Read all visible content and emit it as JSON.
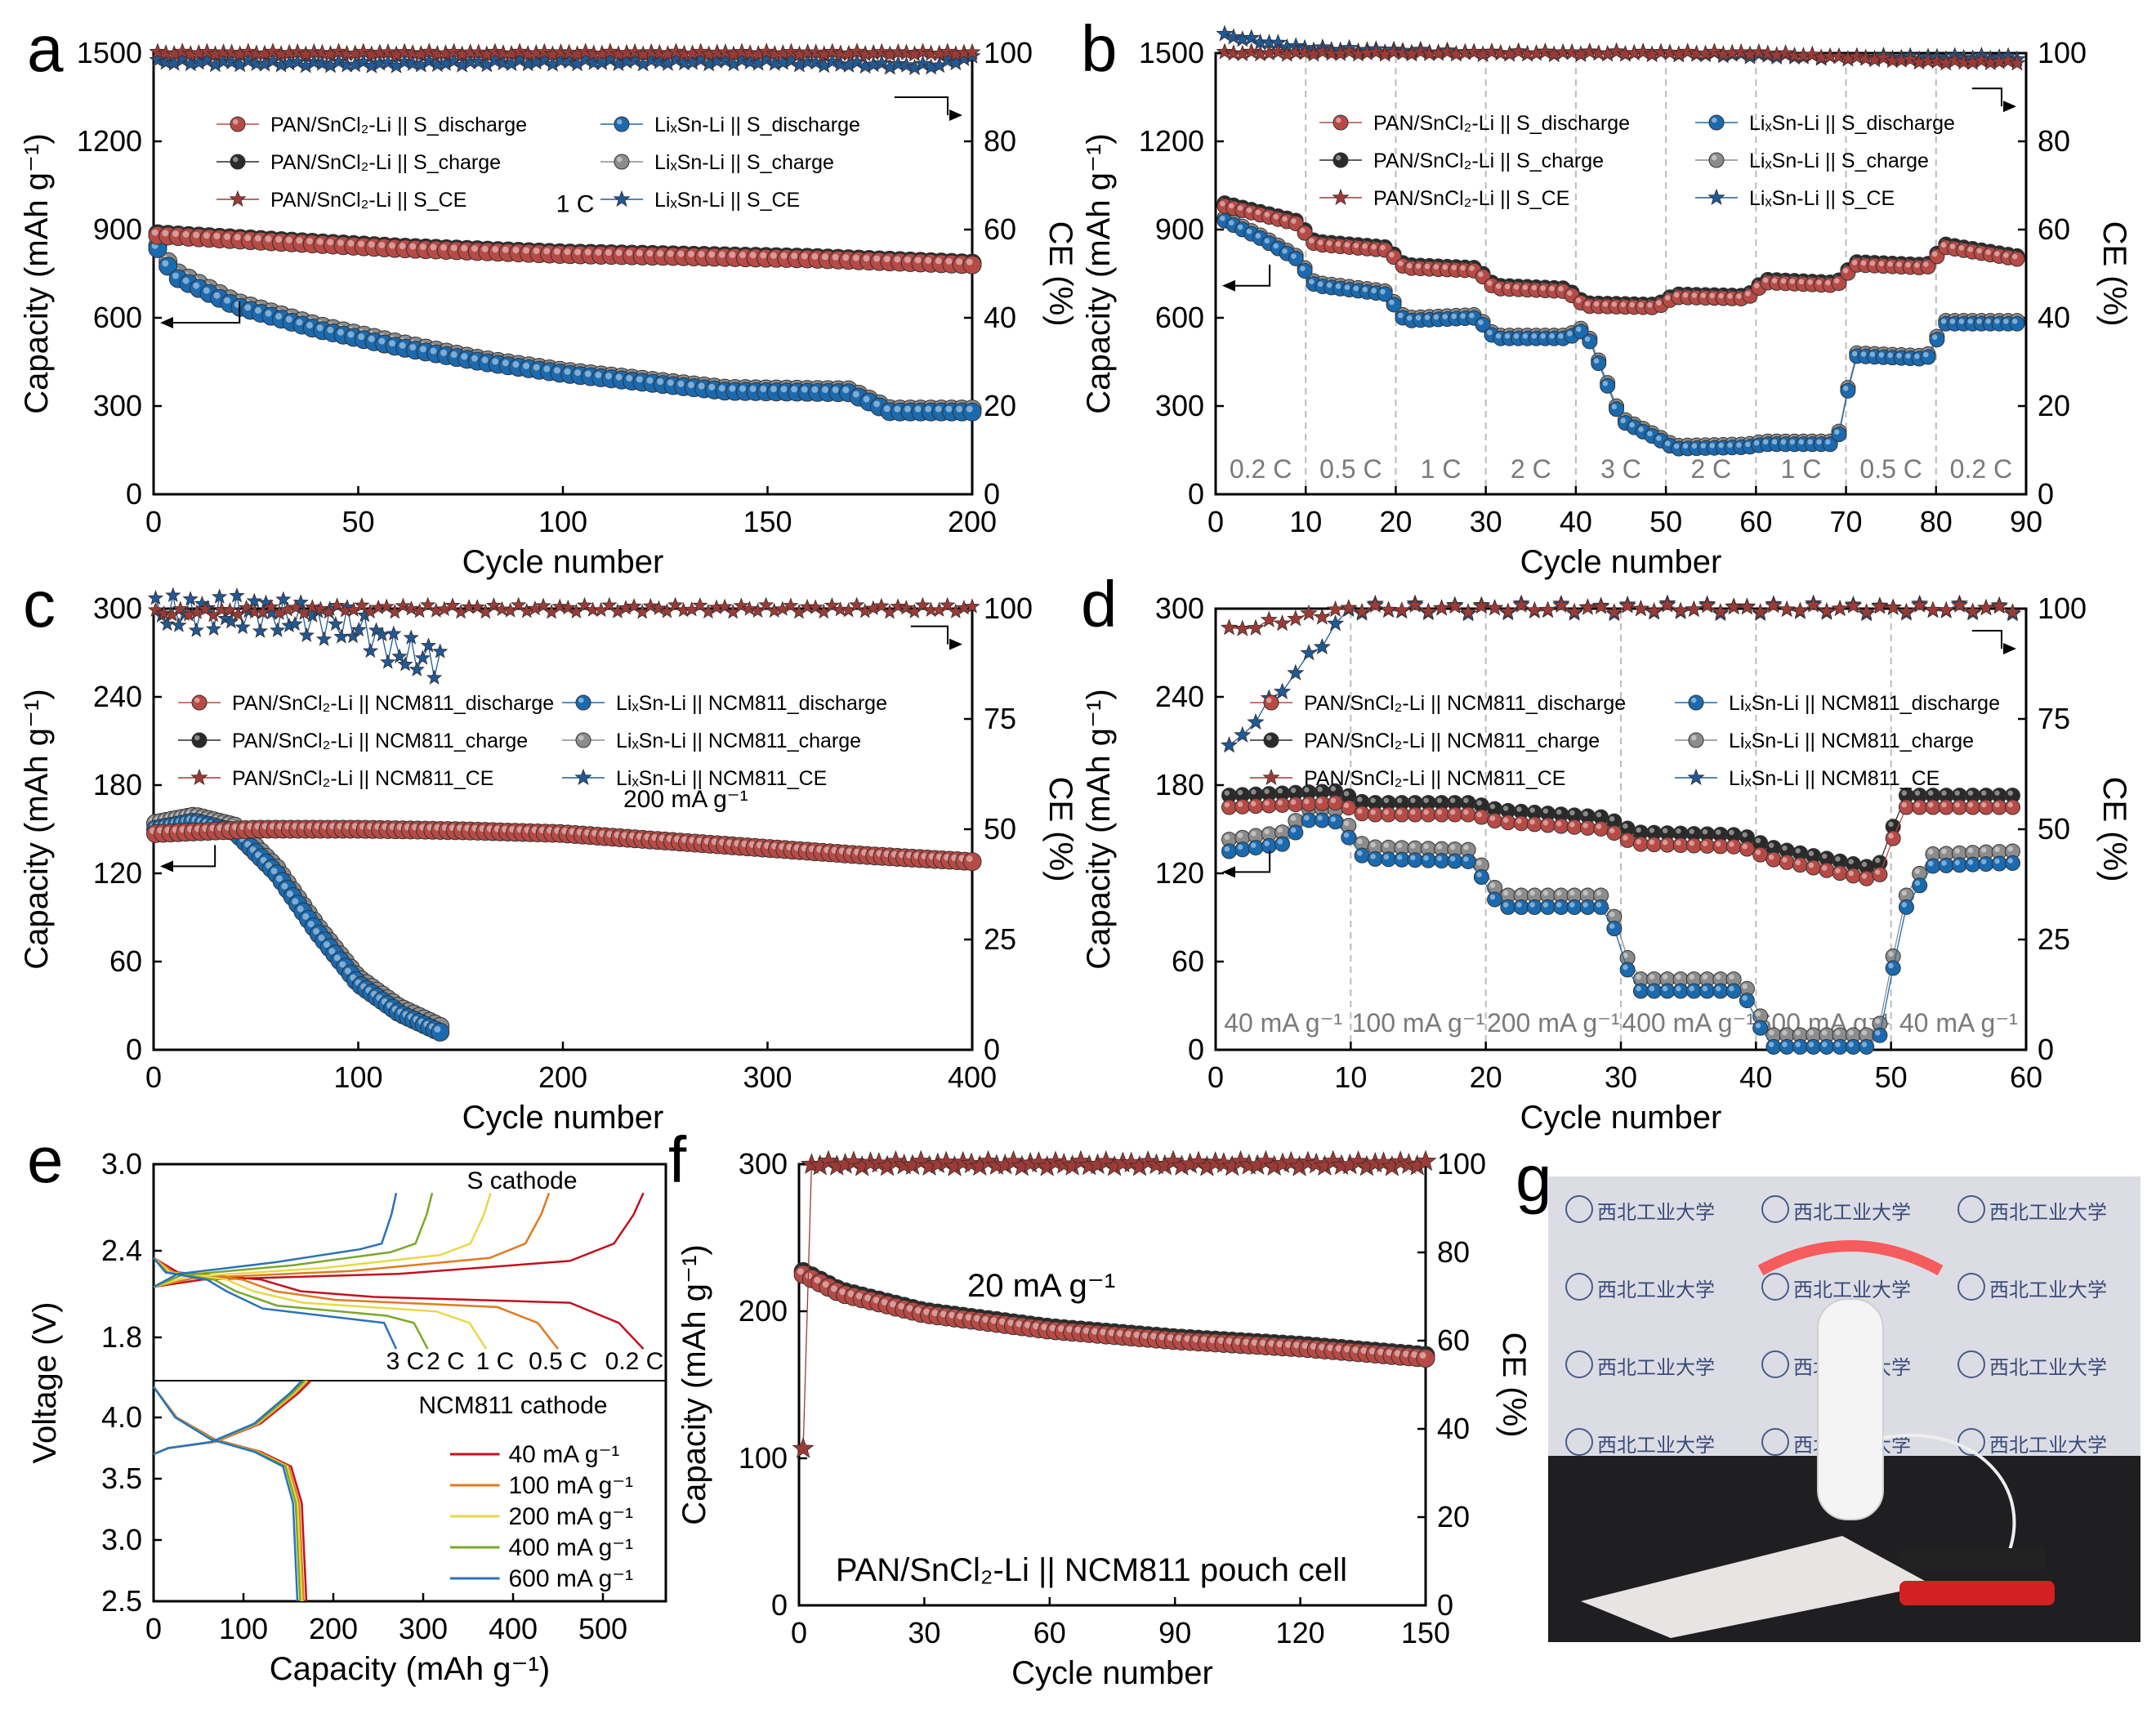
{
  "colors": {
    "red": "#b84a45",
    "red_light": "#e99a93",
    "black": "#2a2a2a",
    "blue": "#1a6ab0",
    "blue_light": "#5fa8e0",
    "gray": "#8c8c8c",
    "star_red": "#9c3b36",
    "star_blue": "#1e5a96",
    "e_02": "#c1121f",
    "e_05": "#e07a1f",
    "e_1": "#e8d84a",
    "e_2": "#7aa82a",
    "e_3": "#2a72b8"
  },
  "panels": {
    "a": {
      "label": "a",
      "xlabel": "Cycle number",
      "ylabel": "Capacity (mAh g⁻¹)",
      "y2label": "CE (%)",
      "xticks": [
        "0",
        "50",
        "100",
        "150",
        "200"
      ],
      "yticks": [
        "0",
        "300",
        "600",
        "900",
        "1200",
        "1500"
      ],
      "y2ticks": [
        "0",
        "20",
        "40",
        "60",
        "80",
        "100"
      ],
      "annotation": "1 C",
      "legend": [
        "PAN/SnCl₂-Li || S_discharge",
        "PAN/SnCl₂-Li || S_charge",
        "PAN/SnCl₂-Li || S_CE",
        "LiₓSn-Li || S_discharge",
        "LiₓSn-Li || S_charge",
        "LiₓSn-Li || S_CE"
      ]
    },
    "b": {
      "label": "b",
      "xlabel": "Cycle number",
      "ylabel": "Capacity (mAh g⁻¹)",
      "y2label": "CE (%)",
      "xticks": [
        "0",
        "10",
        "20",
        "30",
        "40",
        "50",
        "60",
        "70",
        "80",
        "90"
      ],
      "yticks": [
        "0",
        "300",
        "600",
        "900",
        "1200",
        "1500"
      ],
      "y2ticks": [
        "0",
        "20",
        "40",
        "60",
        "80",
        "100"
      ],
      "rates": [
        "0.2 C",
        "0.5 C",
        "1 C",
        "2 C",
        "3 C",
        "2 C",
        "1 C",
        "0.5 C",
        "0.2 C"
      ],
      "legend": [
        "PAN/SnCl₂-Li || S_discharge",
        "PAN/SnCl₂-Li || S_charge",
        "PAN/SnCl₂-Li || S_CE",
        "LiₓSn-Li || S_discharge",
        "LiₓSn-Li || S_charge",
        "LiₓSn-Li || S_CE"
      ]
    },
    "c": {
      "label": "c",
      "xlabel": "Cycle number",
      "ylabel": "Capacity (mAh g⁻¹)",
      "y2label": "CE (%)",
      "xticks": [
        "0",
        "100",
        "200",
        "300",
        "400"
      ],
      "yticks": [
        "0",
        "60",
        "120",
        "180",
        "240",
        "300"
      ],
      "y2ticks": [
        "0",
        "25",
        "50",
        "75",
        "100"
      ],
      "annotation": "200 mA g⁻¹",
      "legend": [
        "PAN/SnCl₂-Li || NCM811_discharge",
        "PAN/SnCl₂-Li || NCM811_charge",
        "PAN/SnCl₂-Li || NCM811_CE",
        "LiₓSn-Li || NCM811_discharge",
        "LiₓSn-Li || NCM811_charge",
        "LiₓSn-Li || NCM811_CE"
      ]
    },
    "d": {
      "label": "d",
      "xlabel": "Cycle number",
      "ylabel": "Capacity (mAh g⁻¹)",
      "y2label": "CE (%)",
      "xticks": [
        "0",
        "10",
        "20",
        "30",
        "40",
        "50",
        "60"
      ],
      "yticks": [
        "0",
        "60",
        "120",
        "180",
        "240",
        "300"
      ],
      "y2ticks": [
        "0",
        "25",
        "50",
        "75",
        "100"
      ],
      "rates": [
        "40 mA g⁻¹",
        "100 mA g⁻¹",
        "200 mA g⁻¹",
        "400 mA g⁻¹",
        "600 mA g⁻¹",
        "40 mA g⁻¹"
      ],
      "legend": [
        "PAN/SnCl₂-Li || NCM811_discharge",
        "PAN/SnCl₂-Li || NCM811_charge",
        "PAN/SnCl₂-Li || NCM811_CE",
        "LiₓSn-Li || NCM811_discharge",
        "LiₓSn-Li || NCM811_charge",
        "LiₓSn-Li || NCM811_CE"
      ]
    },
    "e": {
      "label": "e",
      "xlabel": "Capacity (mAh g⁻¹)",
      "ylabel": "Voltage (V)",
      "xticks": [
        "0",
        "100",
        "200",
        "300",
        "400",
        "500"
      ],
      "yticks_top": [
        "1.8",
        "2.4",
        "3.0"
      ],
      "yticks_bot": [
        "2.5",
        "3.0",
        "3.5",
        "4.0"
      ],
      "top_title": "S cathode",
      "bot_title": "NCM811 cathode",
      "top_rates": [
        "3 C",
        "2 C",
        "1 C",
        "0.5 C",
        "0.2 C"
      ],
      "bot_legend": [
        "40 mA g⁻¹",
        "100 mA g⁻¹",
        "200 mA g⁻¹",
        "400 mA g⁻¹",
        "600 mA g⁻¹"
      ]
    },
    "f": {
      "label": "f",
      "xlabel": "Cycle number",
      "ylabel": "Capacity (mAh g⁻¹)",
      "y2label": "CE (%)",
      "xticks": [
        "0",
        "30",
        "60",
        "90",
        "120",
        "150"
      ],
      "yticks": [
        "0",
        "100",
        "200",
        "300"
      ],
      "y2ticks": [
        "0",
        "20",
        "40",
        "60",
        "80",
        "100"
      ],
      "annotation": "20 mA g⁻¹",
      "caption": "PAN/SnCl₂-Li || NCM811 pouch cell"
    },
    "g": {
      "label": "g",
      "sign_text": "西北工业大学"
    }
  },
  "chart_data": [
    {
      "panel": "a",
      "type": "scatter",
      "xlim": [
        0,
        200
      ],
      "ylim": [
        0,
        1500
      ],
      "y2lim": [
        0,
        100
      ],
      "series": [
        {
          "name": "PAN/SnCl₂-Li || S_discharge",
          "x": [
            1,
            20,
            40,
            60,
            80,
            100,
            120,
            140,
            160,
            180,
            200
          ],
          "y": [
            880,
            865,
            850,
            835,
            825,
            815,
            810,
            805,
            800,
            790,
            780
          ]
        },
        {
          "name": "LiₓSn-Li || S_discharge",
          "x": [
            1,
            5,
            20,
            40,
            60,
            80,
            100,
            120,
            140,
            170,
            180,
            200
          ],
          "y": [
            835,
            740,
            640,
            560,
            500,
            450,
            410,
            380,
            350,
            345,
            280,
            280
          ]
        },
        {
          "name": "PAN/SnCl₂-Li || S_CE",
          "x": [
            1,
            50,
            100,
            150,
            200
          ],
          "y": [
            100,
            100,
            100,
            100,
            100
          ]
        },
        {
          "name": "LiₓSn-Li || S_CE",
          "x": [
            1,
            50,
            100,
            150,
            190,
            200
          ],
          "y": [
            98,
            97.5,
            98,
            98,
            97,
            99
          ]
        }
      ]
    },
    {
      "panel": "b",
      "type": "scatter",
      "xlim": [
        0,
        90
      ],
      "ylim": [
        0,
        1500
      ],
      "y2lim": [
        0,
        100
      ],
      "series": [
        {
          "name": "PAN/SnCl₂-Li || S_discharge",
          "x": [
            1,
            5,
            9,
            11,
            19,
            21,
            29,
            31,
            39,
            41,
            49,
            51,
            59,
            61,
            69,
            71,
            79,
            81,
            89
          ],
          "y": [
            980,
            950,
            920,
            850,
            830,
            770,
            760,
            700,
            690,
            640,
            635,
            670,
            665,
            720,
            710,
            780,
            770,
            840,
            800
          ]
        },
        {
          "name": "LiₓSn-Li || S_discharge",
          "x": [
            1,
            5,
            9,
            11,
            19,
            21,
            29,
            31,
            39,
            41,
            43,
            45,
            49,
            51,
            59,
            61,
            69,
            71,
            79,
            81,
            89
          ],
          "y": [
            930,
            870,
            800,
            710,
            680,
            590,
            600,
            530,
            530,
            560,
            410,
            250,
            190,
            155,
            160,
            170,
            170,
            470,
            460,
            580,
            580
          ]
        },
        {
          "name": "PAN/SnCl₂-Li || S_CE",
          "x": [
            1,
            20,
            40,
            60,
            80,
            82,
            90
          ],
          "y": [
            100,
            100,
            100,
            100,
            98,
            98,
            98
          ]
        },
        {
          "name": "LiₓSn-Li || S_CE",
          "x": [
            1,
            10,
            30,
            50,
            70,
            90
          ],
          "y": [
            104,
            101,
            100,
            100,
            99,
            99
          ]
        }
      ]
    },
    {
      "panel": "c",
      "type": "scatter",
      "xlim": [
        0,
        400
      ],
      "ylim": [
        0,
        300
      ],
      "y2lim": [
        0,
        100
      ],
      "series": [
        {
          "name": "PAN/SnCl₂-Li || NCM811_discharge",
          "x": [
            1,
            50,
            100,
            150,
            200,
            250,
            300,
            350,
            400
          ],
          "y": [
            147,
            150,
            150,
            149,
            147,
            142,
            137,
            132,
            128
          ]
        },
        {
          "name": "LiₓSn-Li || NCM811_discharge",
          "x": [
            1,
            20,
            40,
            60,
            80,
            100,
            120,
            140
          ],
          "y": [
            150,
            155,
            148,
            120,
            80,
            45,
            25,
            12
          ]
        },
        {
          "name": "PAN/SnCl₂-Li || NCM811_CE",
          "x": [
            1,
            100,
            200,
            300,
            400
          ],
          "y": [
            99,
            100,
            100,
            100,
            100
          ]
        },
        {
          "name": "LiₓSn-Li || NCM811_CE",
          "x": [
            1,
            50,
            100,
            120,
            140
          ],
          "y": [
            99,
            99,
            96,
            90,
            88
          ]
        }
      ]
    },
    {
      "panel": "d",
      "type": "scatter",
      "xlim": [
        0,
        60
      ],
      "ylim": [
        0,
        300
      ],
      "y2lim": [
        0,
        100
      ],
      "series": [
        {
          "name": "PAN/SnCl₂-Li || NCM811_discharge",
          "x": [
            1,
            9,
            11,
            19,
            21,
            29,
            31,
            39,
            41,
            49,
            51,
            59
          ],
          "y": [
            165,
            168,
            160,
            160,
            155,
            150,
            140,
            138,
            130,
            115,
            165,
            165
          ]
        },
        {
          "name": "LiₓSn-Li || NCM811_discharge",
          "x": [
            1,
            5,
            7,
            9,
            11,
            19,
            21,
            29,
            31,
            39,
            41,
            49,
            51,
            53,
            59
          ],
          "y": [
            135,
            140,
            157,
            155,
            130,
            128,
            97,
            97,
            40,
            40,
            2,
            2,
            95,
            125,
            127
          ]
        },
        {
          "name": "PAN/SnCl₂-Li || NCM811_CE",
          "x": [
            1,
            10,
            30,
            50,
            60
          ],
          "y": [
            95,
            100,
            100,
            100,
            100
          ]
        },
        {
          "name": "LiₓSn-Li || NCM811_CE",
          "x": [
            1,
            10,
            30,
            50,
            60
          ],
          "y": [
            68,
            100,
            100,
            100,
            100
          ]
        }
      ]
    },
    {
      "panel": "e",
      "type": "line",
      "xlim": [
        0,
        570
      ],
      "ylim_top": [
        1.5,
        3.0
      ],
      "ylim_bot": [
        2.5,
        4.3
      ],
      "series": [
        {
          "name": "0.2 C",
          "charge_end": 545,
          "discharge_end": 545
        },
        {
          "name": "0.5 C",
          "charge_end": 440,
          "discharge_end": 450
        },
        {
          "name": "1 C",
          "charge_end": 375,
          "discharge_end": 370
        },
        {
          "name": "2 C",
          "charge_end": 310,
          "discharge_end": 305
        },
        {
          "name": "3 C",
          "charge_end": 270,
          "discharge_end": 270
        },
        {
          "name": "40 mA g⁻¹",
          "capacity_end": 170
        },
        {
          "name": "100 mA g⁻¹",
          "capacity_end": 167
        },
        {
          "name": "200 mA g⁻¹",
          "capacity_end": 165
        },
        {
          "name": "400 mA g⁻¹",
          "capacity_end": 163
        },
        {
          "name": "600 mA g⁻¹",
          "capacity_end": 160
        }
      ]
    },
    {
      "panel": "f",
      "type": "scatter",
      "xlim": [
        0,
        150
      ],
      "ylim": [
        0,
        300
      ],
      "y2lim": [
        0,
        100
      ],
      "series": [
        {
          "name": "discharge",
          "x": [
            1,
            10,
            30,
            60,
            90,
            120,
            150
          ],
          "y": [
            225,
            212,
            198,
            187,
            180,
            175,
            168
          ]
        },
        {
          "name": "CE",
          "x": [
            1,
            3,
            30,
            60,
            90,
            120,
            150
          ],
          "y": [
            35,
            100,
            100,
            100,
            100,
            100,
            100
          ]
        }
      ]
    }
  ]
}
